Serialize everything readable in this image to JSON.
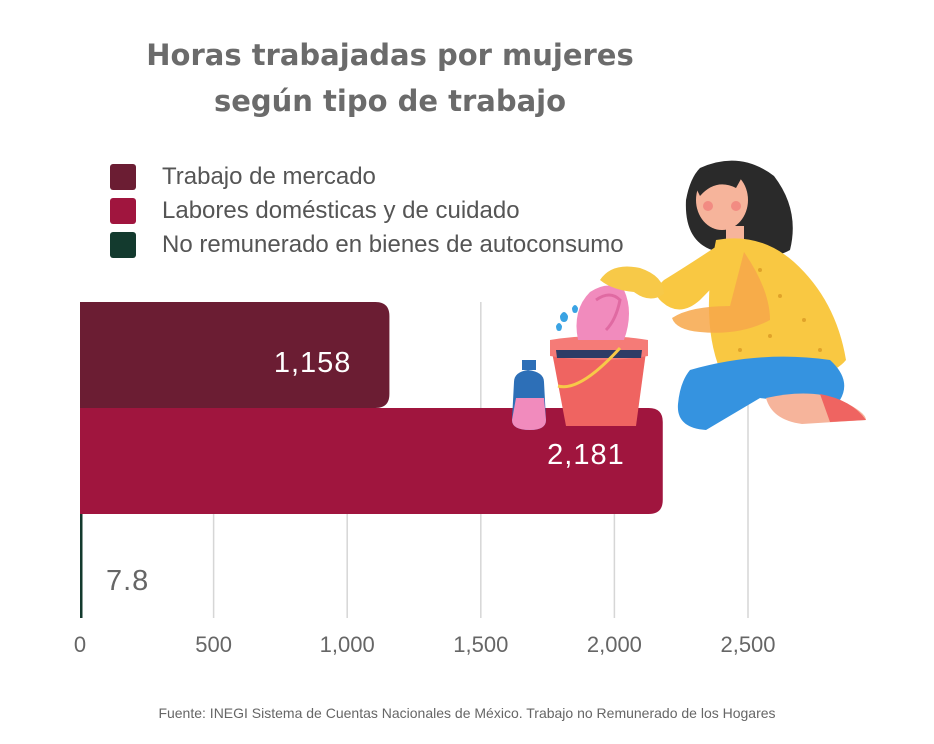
{
  "title_lines": [
    "Horas trabajadas por mujeres",
    "según tipo de trabajo"
  ],
  "legend": [
    {
      "label": "Trabajo de mercado",
      "color": "#6b1d33"
    },
    {
      "label": "Labores domésticas y de cuidado",
      "color": "#a0153e"
    },
    {
      "label": "No remunerado en bienes de autoconsumo",
      "color": "#133a2e"
    }
  ],
  "chart_data": {
    "type": "bar",
    "orientation": "horizontal",
    "categories": [
      "Trabajo de mercado",
      "Labores domésticas y de cuidado",
      "No remunerado en bienes de autoconsumo"
    ],
    "values": [
      1158,
      2181,
      7.8
    ],
    "value_labels": [
      "1,158",
      "2,181",
      "7.8"
    ],
    "colors": [
      "#6b1d33",
      "#a0153e",
      "#133a2e"
    ],
    "label_colors": [
      "#ffffff",
      "#ffffff",
      "#666666"
    ],
    "xticks": [
      0,
      500,
      1000,
      1500,
      2000,
      2500
    ],
    "xtick_labels": [
      "0",
      "500",
      "1,000",
      "1,500",
      "2,000",
      "2,500"
    ],
    "xlim": [
      0,
      2500
    ],
    "grid": true,
    "legend_position": "top-left"
  },
  "source": "Fuente: INEGI Sistema de Cuentas Nacionales de México. Trabajo no Remunerado de los Hogares",
  "illustration": {
    "icon": "woman-cleaning-bucket-illustration"
  }
}
